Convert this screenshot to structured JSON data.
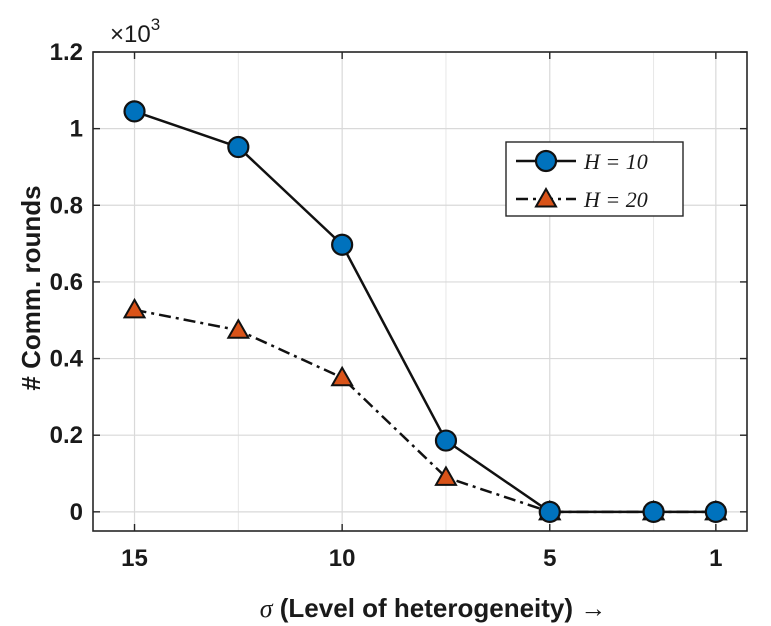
{
  "chart_data": {
    "type": "line",
    "xlabel": "σ (Level of heterogeneity) →",
    "ylabel": "# Comm. rounds",
    "y_multiplier_label": "×10",
    "y_multiplier_exponent": "3",
    "x_axis_reversed": true,
    "xlim": [
      16,
      0.25
    ],
    "ylim": [
      -0.05,
      1.2
    ],
    "x_ticks": [
      15,
      10,
      5,
      1
    ],
    "x_tick_labels": [
      "15",
      "10",
      "5",
      "1"
    ],
    "y_ticks": [
      0,
      0.2,
      0.4,
      0.6,
      0.8,
      1.0,
      1.2
    ],
    "y_tick_labels": [
      "0",
      "0.2",
      "0.4",
      "0.6",
      "0.8",
      "1",
      "1.2"
    ],
    "grid": true,
    "legend_position": "top-right",
    "x": [
      15,
      12.5,
      10,
      7.5,
      5,
      2.5,
      1
    ],
    "series": [
      {
        "name": "H = 10",
        "values": [
          1.045,
          0.952,
          0.697,
          0.186,
          0.0,
          0.0,
          0.0
        ],
        "color": "#0072BD",
        "marker": "circle",
        "line_style": "solid"
      },
      {
        "name": "H = 20",
        "values": [
          0.527,
          0.474,
          0.35,
          0.09,
          0.0,
          0.0,
          0.0
        ],
        "color": "#D95319",
        "marker": "triangle",
        "line_style": "dash-dot"
      }
    ]
  }
}
